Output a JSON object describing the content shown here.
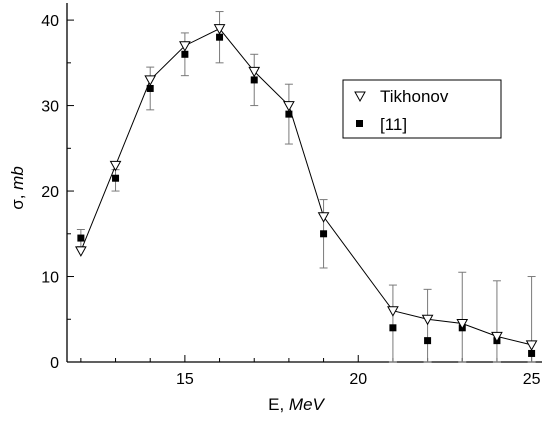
{
  "chart_data": {
    "type": "line",
    "title": "",
    "xlabel_prefix": "E, ",
    "xlabel_unit": "MeV",
    "ylabel_prefix": "σ, ",
    "ylabel_unit": "mb",
    "xlim": [
      11.6,
      25.3
    ],
    "ylim": [
      0,
      42
    ],
    "x_ticks": [
      15,
      20,
      25
    ],
    "y_ticks": [
      0,
      10,
      20,
      30,
      40
    ],
    "legend_position": "right-middle",
    "series": [
      {
        "name": "Tikhonov",
        "marker": "triangle-down-open",
        "line": true,
        "color": "#000000",
        "x": [
          12,
          13,
          14,
          15,
          16,
          17,
          18,
          19,
          21,
          22,
          23,
          24,
          25
        ],
        "y": [
          13,
          23,
          33,
          37,
          39,
          34,
          30,
          17,
          6,
          5,
          4.5,
          3,
          2
        ]
      },
      {
        "name": "[11]",
        "marker": "square-filled",
        "line": false,
        "color": "#000000",
        "x": [
          12,
          13,
          14,
          15,
          16,
          17,
          18,
          19,
          21,
          22,
          23,
          24,
          25
        ],
        "y": [
          14.5,
          21.5,
          32,
          36,
          38,
          33,
          29,
          15,
          4,
          2.5,
          4,
          2.5,
          1
        ],
        "err_low": [
          13.5,
          20,
          29.5,
          33.5,
          35,
          30,
          25.5,
          11,
          0,
          0,
          0,
          0,
          0
        ],
        "err_high": [
          15.5,
          22.5,
          34.5,
          38.5,
          41,
          36,
          32.5,
          19,
          9,
          8.5,
          10.5,
          9.5,
          10
        ]
      }
    ]
  }
}
